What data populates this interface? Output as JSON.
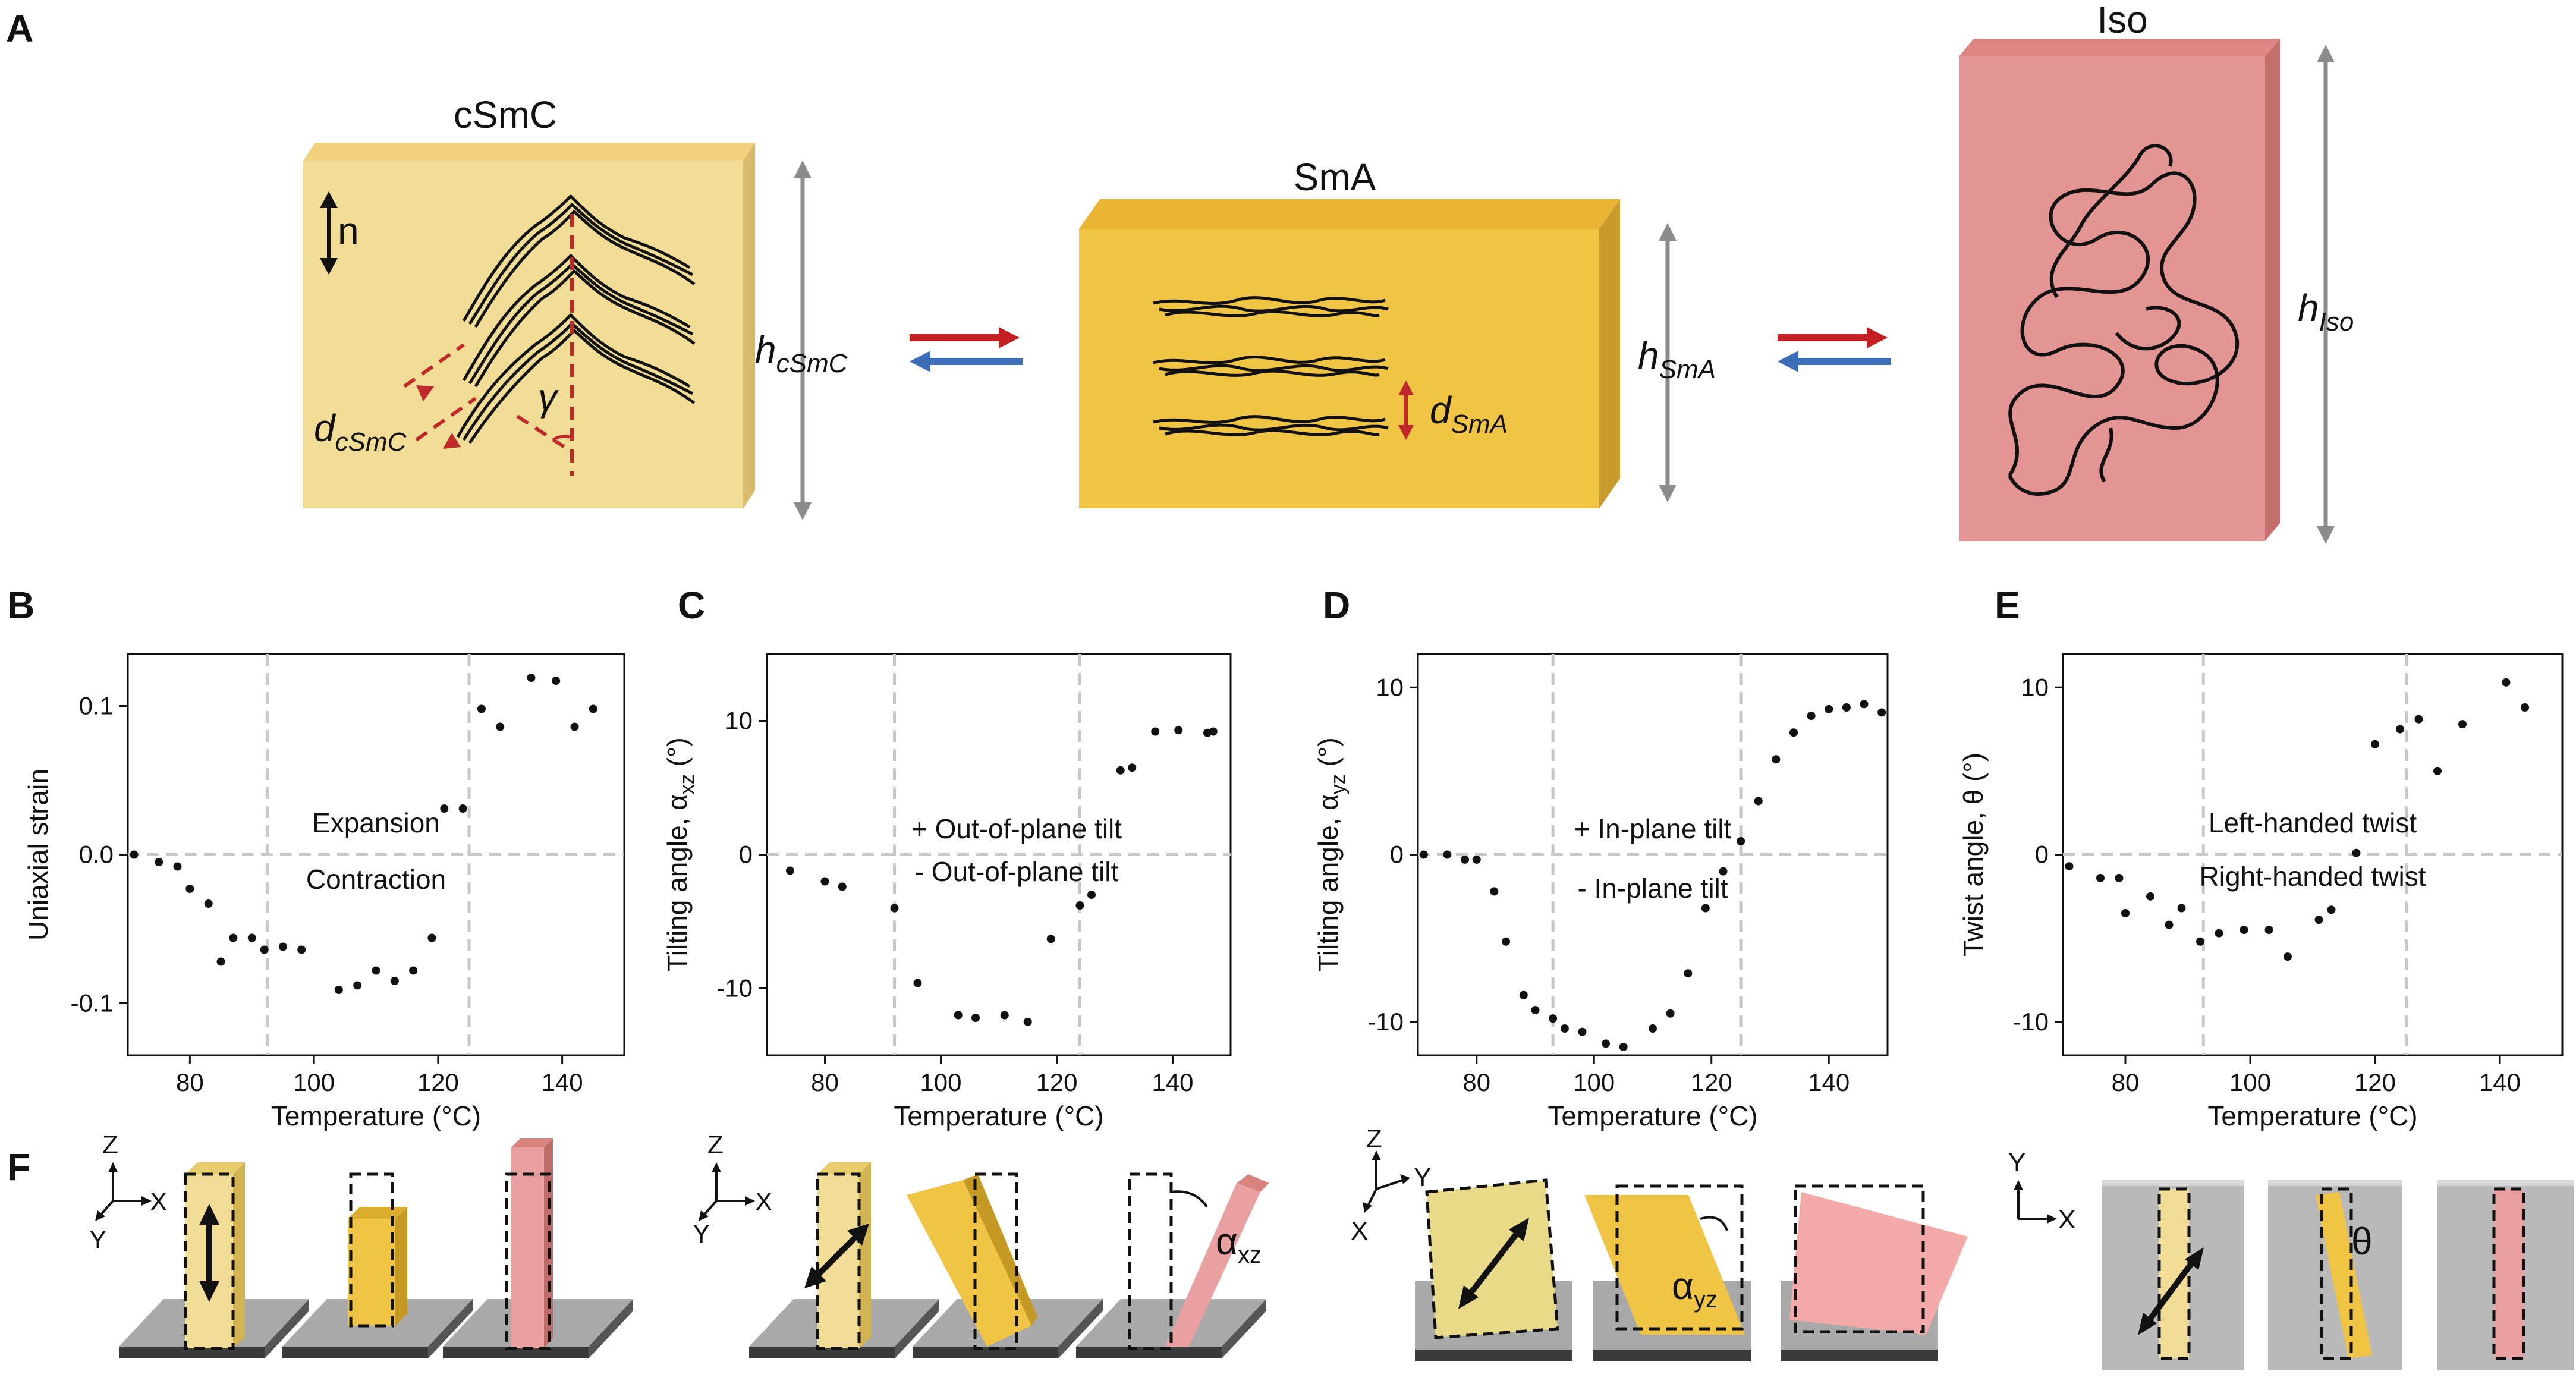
{
  "panels": {
    "A": "A",
    "B": "B",
    "C": "C",
    "D": "D",
    "E": "E",
    "F": "F"
  },
  "colors": {
    "csmc": "#f2dd96",
    "sma": "#f0c444",
    "iso": "#e39593",
    "red_arrow": "#c42024",
    "blue_arrow": "#3a6db5",
    "gray_arrow": "#8c8c8c",
    "dashed_red": "#c0282a",
    "grid": "#c8c8c8"
  },
  "phases": {
    "csmc": {
      "title": "cSmC",
      "n_label": "n",
      "h": "h",
      "h_sub": "cSmC",
      "d": "d",
      "d_sub": "cSmC",
      "gamma": "γ"
    },
    "sma": {
      "title": "SmA",
      "h": "h",
      "h_sub": "SmA",
      "d": "d",
      "d_sub": "SmA"
    },
    "iso": {
      "title": "Iso",
      "h": "h",
      "h_sub": "Iso"
    }
  },
  "chart_data": [
    {
      "panel": "B",
      "type": "scatter",
      "xlabel": "Temperature (°C)",
      "ylabel": "Uniaxial strain",
      "xlim": [
        70,
        150
      ],
      "ylim": [
        -0.135,
        0.135
      ],
      "xticks": [
        80,
        100,
        120,
        140
      ],
      "yticks": [
        -0.1,
        0.0,
        0.1
      ],
      "ytick_labels": [
        "-0.1",
        "0.0",
        "0.1"
      ],
      "vlines": [
        92.5,
        125
      ],
      "hline": 0,
      "annotations": [
        "Expansion",
        "Contraction"
      ],
      "x": [
        71,
        75,
        78,
        80,
        83,
        85,
        87,
        90,
        92,
        95,
        98,
        104,
        107,
        110,
        113,
        116,
        119,
        121,
        124,
        127,
        130,
        135,
        139,
        142,
        145
      ],
      "y": [
        0,
        -0.005,
        -0.008,
        -0.023,
        -0.033,
        -0.072,
        -0.056,
        -0.056,
        -0.064,
        -0.062,
        -0.064,
        -0.091,
        -0.088,
        -0.078,
        -0.085,
        -0.078,
        -0.056,
        0.031,
        0.031,
        0.098,
        0.086,
        0.119,
        0.117,
        0.086,
        0.098
      ]
    },
    {
      "panel": "C",
      "type": "scatter",
      "xlabel": "Temperature (°C)",
      "ylabel": "Tilting angle, α",
      "ylabel_sub": "xz",
      "ylabel_unit": " (°)",
      "xlim": [
        70,
        150
      ],
      "ylim": [
        -15,
        15
      ],
      "xticks": [
        80,
        100,
        120,
        140
      ],
      "yticks": [
        -10,
        0,
        10
      ],
      "ytick_labels": [
        "-10",
        "0",
        "10"
      ],
      "vlines": [
        92,
        124
      ],
      "hline": 0,
      "annotations": [
        "+ Out-of-plane tilt",
        "- Out-of-plane tilt"
      ],
      "x": [
        74,
        80,
        83,
        92,
        96,
        103,
        106,
        111,
        115,
        119,
        124,
        126,
        131,
        133,
        137,
        141,
        146,
        147
      ],
      "y": [
        -1.2,
        -2,
        -2.4,
        -4,
        -9.6,
        -12,
        -12.2,
        -12,
        -12.5,
        -6.3,
        -3.8,
        -3,
        6.3,
        6.5,
        9.2,
        9.3,
        9.1,
        9.2
      ]
    },
    {
      "panel": "D",
      "type": "scatter",
      "xlabel": "Temperature (°C)",
      "ylabel": "Tilting angle, α",
      "ylabel_sub": "yz",
      "ylabel_unit": " (°)",
      "xlim": [
        70,
        150
      ],
      "ylim": [
        -12,
        12
      ],
      "xticks": [
        80,
        100,
        120,
        140
      ],
      "yticks": [
        -10,
        0,
        10
      ],
      "ytick_labels": [
        "-10",
        "0",
        "10"
      ],
      "vlines": [
        93,
        125
      ],
      "hline": 0,
      "annotations": [
        "+ In-plane tilt",
        "- In-plane tilt"
      ],
      "x": [
        71,
        75,
        78,
        80,
        83,
        85,
        88,
        90,
        93,
        95,
        98,
        102,
        105,
        110,
        113,
        116,
        119,
        122,
        125,
        128,
        131,
        134,
        137,
        140,
        143,
        146,
        149
      ],
      "y": [
        0,
        0,
        -0.3,
        -0.3,
        -2.2,
        -5.2,
        -8.4,
        -9.3,
        -9.8,
        -10.4,
        -10.6,
        -11.3,
        -11.5,
        -10.4,
        -9.5,
        -7.1,
        -3.2,
        -1,
        0.8,
        3.2,
        5.7,
        7.3,
        8.3,
        8.7,
        8.8,
        9,
        8.5
      ]
    },
    {
      "panel": "E",
      "type": "scatter",
      "xlabel": "Temperature (°C)",
      "ylabel": "Twist angle, θ (°)",
      "xlim": [
        70,
        150
      ],
      "ylim": [
        -12,
        12
      ],
      "xticks": [
        80,
        100,
        120,
        140
      ],
      "yticks": [
        -10,
        0,
        10
      ],
      "ytick_labels": [
        "-10",
        "0",
        "10"
      ],
      "vlines": [
        92.5,
        125
      ],
      "hline": 0,
      "annotations": [
        "Left-handed twist",
        "Right-handed twist"
      ],
      "x": [
        71,
        76,
        79,
        80,
        84,
        87,
        89,
        92,
        95,
        99,
        103,
        106,
        111,
        113,
        117,
        120,
        124,
        127,
        130,
        134,
        141,
        144
      ],
      "y": [
        -0.7,
        -1.4,
        -1.4,
        -3.5,
        -2.5,
        -4.2,
        -3.2,
        -5.2,
        -4.7,
        -4.5,
        -4.5,
        -6.1,
        -3.9,
        -3.3,
        0.1,
        6.6,
        7.5,
        8.1,
        5,
        7.8,
        10.3,
        8.8
      ]
    }
  ],
  "panelF": {
    "set1": {
      "ax_z": "Z",
      "ax_x": "X",
      "ax_y": "Y"
    },
    "set2": {
      "ax_z": "Z",
      "ax_x": "X",
      "ax_y": "Y",
      "angle": "α",
      "angle_sub": "xz"
    },
    "set3": {
      "ax_z": "Z",
      "ax_x": "Y",
      "ax_y": "X",
      "angle": "α",
      "angle_sub": "yz"
    },
    "set4": {
      "ax_z": "Y",
      "ax_x": "X",
      "angle": "θ"
    }
  }
}
